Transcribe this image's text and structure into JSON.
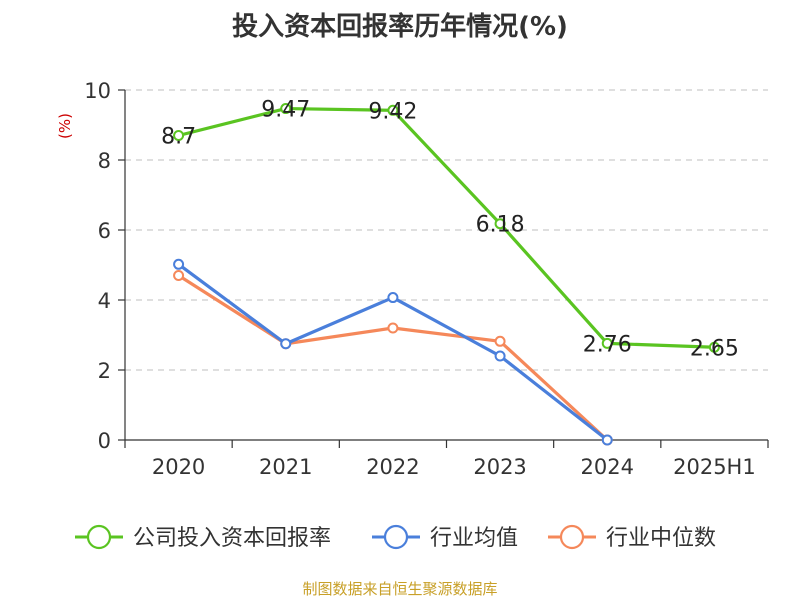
{
  "title": "投入资本回报率历年情况(%)",
  "source": "制图数据来自恒生聚源数据库",
  "chart_data": {
    "type": "line",
    "title": "投入资本回报率历年情况(%)",
    "ylabel": "(%)",
    "xlabel": "",
    "ylim": [
      0,
      10
    ],
    "yticks": [
      0,
      2,
      4,
      6,
      8,
      10
    ],
    "grid": true,
    "legend_position": "bottom",
    "categories": [
      "2020",
      "2021",
      "2022",
      "2023",
      "2024",
      "2025H1"
    ],
    "series": [
      {
        "name": "公司投入资本回报率",
        "color": "#5ac421",
        "values": [
          8.7,
          9.47,
          9.42,
          6.18,
          2.76,
          2.65
        ],
        "show_labels": true,
        "labels": [
          "8.7",
          "9.47",
          "9.42",
          "6.18",
          "2.76",
          "2.65"
        ]
      },
      {
        "name": "行业均值",
        "color": "#4a7fdb",
        "values": [
          5.02,
          2.75,
          4.07,
          2.4,
          0.0,
          null
        ],
        "show_labels": false
      },
      {
        "name": "行业中位数",
        "color": "#f5885a",
        "values": [
          4.7,
          2.75,
          3.2,
          2.82,
          0.0,
          null
        ],
        "show_labels": false
      }
    ]
  }
}
